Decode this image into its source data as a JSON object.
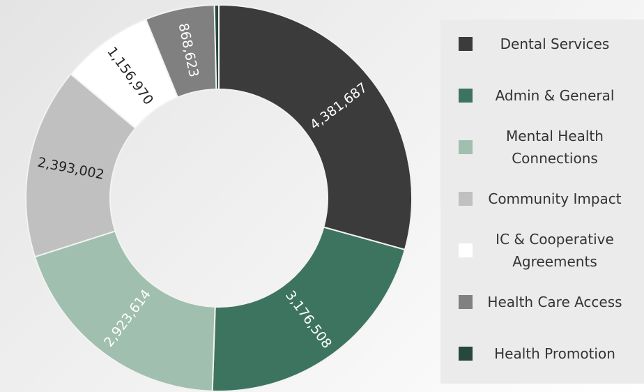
{
  "chart_data": {
    "type": "donut",
    "categories": [
      "Dental Services",
      "Admin & General",
      "Mental Health Connections",
      "Community Impact",
      "IC & Cooperative Agreements",
      "Health Care Access",
      "Health Promotion"
    ],
    "values": [
      4381687,
      3176508,
      2923614,
      2393002,
      1156970,
      868623,
      55000
    ],
    "value_labels": [
      "4,381,687",
      "3,176,508",
      "2,923,614",
      "2,393,002",
      "1,156,970",
      "868,623",
      null
    ],
    "colors": [
      "#3b3b3b",
      "#3d7460",
      "#a0bfae",
      "#c0c0c0",
      "#ffffff",
      "#808080",
      "#27483c"
    ],
    "label_colors": [
      "#ffffff",
      "#ffffff",
      "#ffffff",
      "#222222",
      "#222222",
      "#ffffff",
      "#ffffff"
    ]
  }
}
